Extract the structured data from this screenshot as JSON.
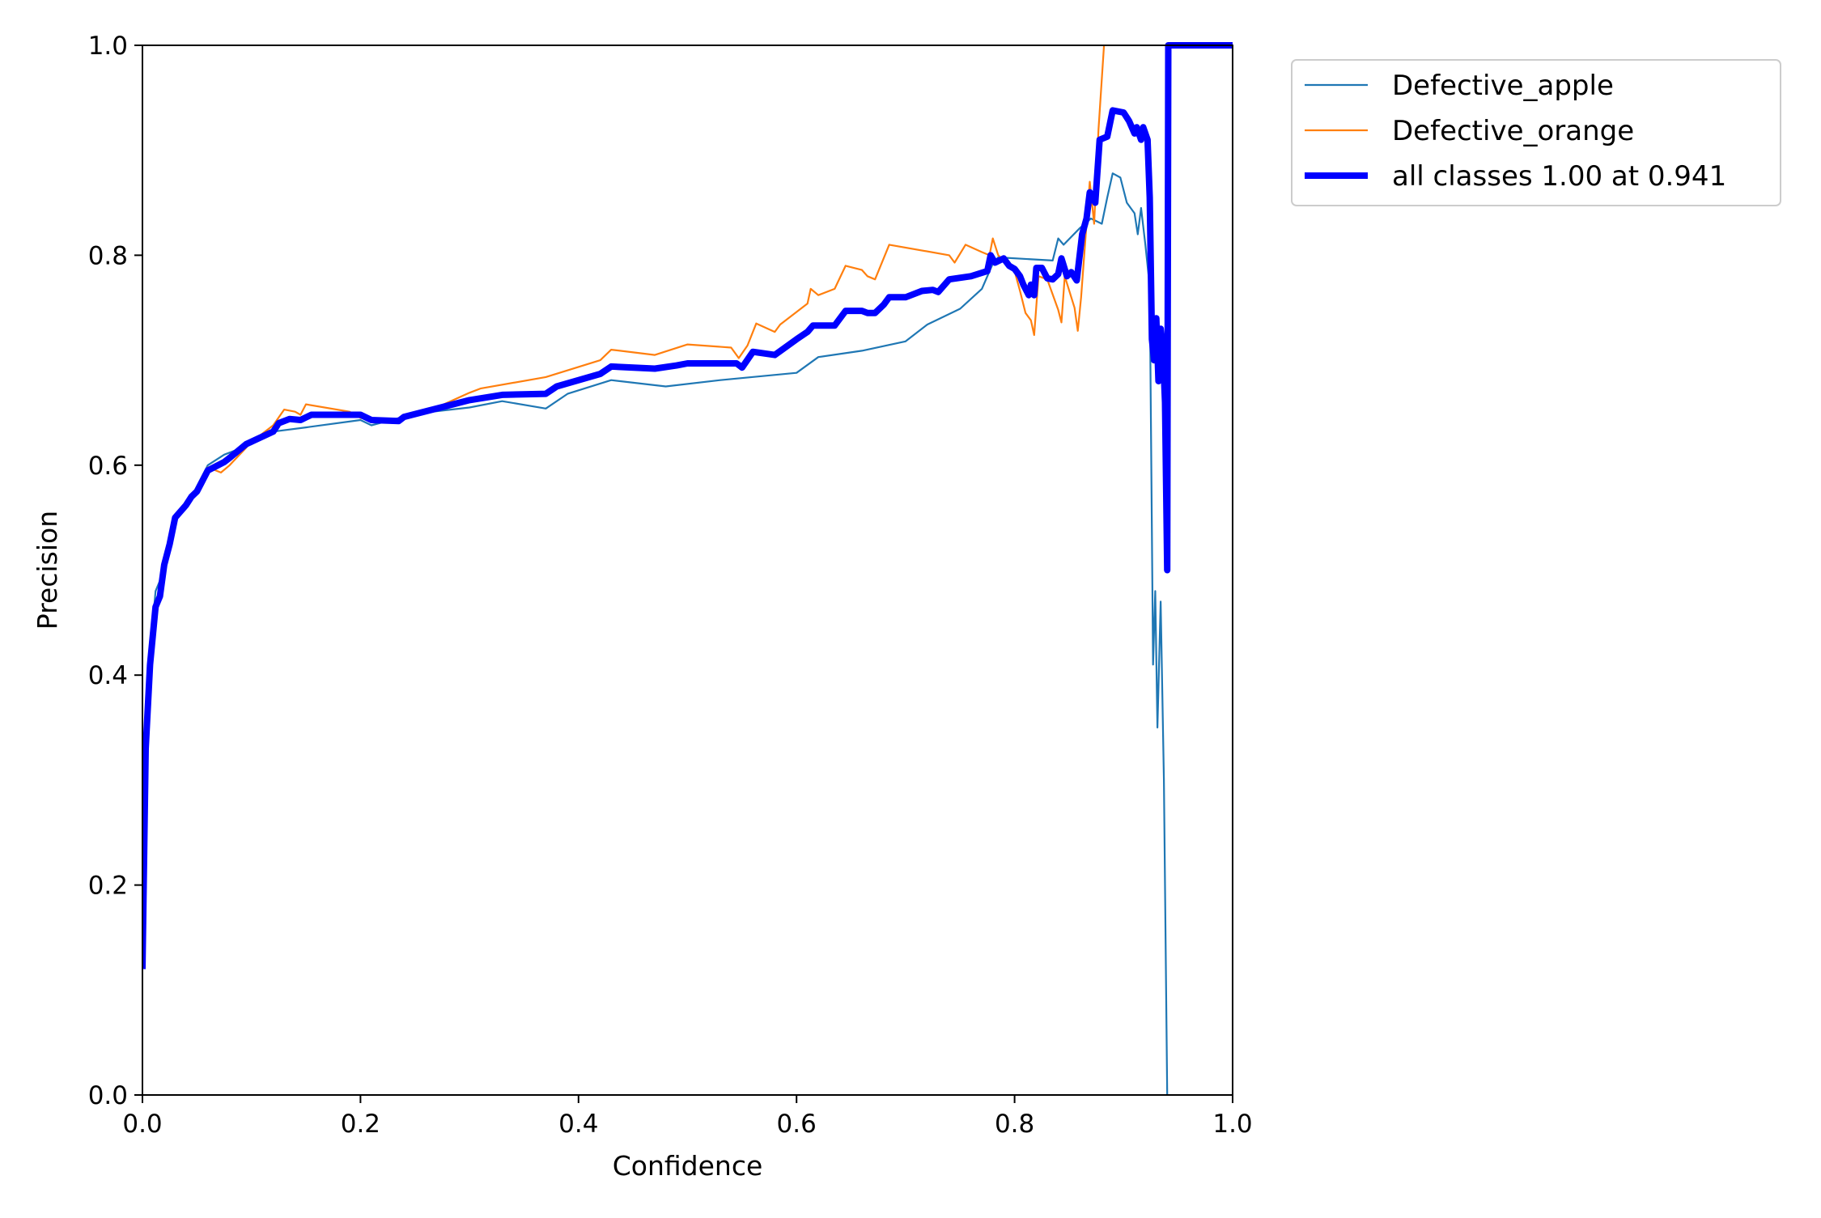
{
  "chart_data": {
    "type": "line",
    "title": "",
    "xlabel": "Confidence",
    "ylabel": "Precision",
    "xlim": [
      0.0,
      1.0
    ],
    "ylim": [
      0.0,
      1.0
    ],
    "xticks": [
      "0.0",
      "0.2",
      "0.4",
      "0.6",
      "0.8",
      "1.0"
    ],
    "yticks": [
      "0.0",
      "0.2",
      "0.4",
      "0.6",
      "0.8",
      "1.0"
    ],
    "grid": false,
    "legend": {
      "placement": "outside-top-right"
    },
    "series": [
      {
        "name": "Defective_apple",
        "color": "#1f77b4",
        "width": "thin",
        "points": [
          [
            0.0,
            0.14
          ],
          [
            0.003,
            0.33
          ],
          [
            0.007,
            0.42
          ],
          [
            0.012,
            0.48
          ],
          [
            0.016,
            0.49
          ],
          [
            0.02,
            0.51
          ],
          [
            0.03,
            0.55
          ],
          [
            0.045,
            0.57
          ],
          [
            0.06,
            0.6
          ],
          [
            0.075,
            0.61
          ],
          [
            0.1,
            0.62
          ],
          [
            0.12,
            0.632
          ],
          [
            0.15,
            0.636
          ],
          [
            0.2,
            0.643
          ],
          [
            0.21,
            0.638
          ],
          [
            0.25,
            0.649
          ],
          [
            0.3,
            0.655
          ],
          [
            0.33,
            0.661
          ],
          [
            0.37,
            0.654
          ],
          [
            0.39,
            0.668
          ],
          [
            0.43,
            0.681
          ],
          [
            0.48,
            0.675
          ],
          [
            0.53,
            0.681
          ],
          [
            0.6,
            0.688
          ],
          [
            0.62,
            0.703
          ],
          [
            0.66,
            0.709
          ],
          [
            0.7,
            0.718
          ],
          [
            0.72,
            0.734
          ],
          [
            0.75,
            0.749
          ],
          [
            0.77,
            0.768
          ],
          [
            0.78,
            0.792
          ],
          [
            0.785,
            0.798
          ],
          [
            0.835,
            0.795
          ],
          [
            0.84,
            0.816
          ],
          [
            0.845,
            0.81
          ],
          [
            0.86,
            0.826
          ],
          [
            0.87,
            0.835
          ],
          [
            0.88,
            0.83
          ],
          [
            0.885,
            0.855
          ],
          [
            0.89,
            0.878
          ],
          [
            0.897,
            0.874
          ],
          [
            0.903,
            0.85
          ],
          [
            0.91,
            0.84
          ],
          [
            0.913,
            0.82
          ],
          [
            0.916,
            0.845
          ],
          [
            0.92,
            0.81
          ],
          [
            0.924,
            0.77
          ],
          [
            0.927,
            0.41
          ],
          [
            0.929,
            0.48
          ],
          [
            0.931,
            0.35
          ],
          [
            0.934,
            0.47
          ],
          [
            0.937,
            0.3
          ],
          [
            0.94,
            0.0
          ]
        ]
      },
      {
        "name": "Defective_orange",
        "color": "#ff7f0e",
        "width": "thin",
        "points": [
          [
            0.0,
            0.13
          ],
          [
            0.005,
            0.35
          ],
          [
            0.01,
            0.44
          ],
          [
            0.015,
            0.47
          ],
          [
            0.02,
            0.5
          ],
          [
            0.03,
            0.55
          ],
          [
            0.045,
            0.57
          ],
          [
            0.06,
            0.598
          ],
          [
            0.072,
            0.593
          ],
          [
            0.08,
            0.6
          ],
          [
            0.1,
            0.622
          ],
          [
            0.12,
            0.638
          ],
          [
            0.13,
            0.653
          ],
          [
            0.14,
            0.651
          ],
          [
            0.145,
            0.648
          ],
          [
            0.15,
            0.658
          ],
          [
            0.19,
            0.651
          ],
          [
            0.2,
            0.645
          ],
          [
            0.23,
            0.64
          ],
          [
            0.27,
            0.655
          ],
          [
            0.3,
            0.669
          ],
          [
            0.31,
            0.673
          ],
          [
            0.37,
            0.684
          ],
          [
            0.42,
            0.7
          ],
          [
            0.43,
            0.71
          ],
          [
            0.47,
            0.705
          ],
          [
            0.5,
            0.715
          ],
          [
            0.54,
            0.712
          ],
          [
            0.547,
            0.702
          ],
          [
            0.555,
            0.714
          ],
          [
            0.563,
            0.735
          ],
          [
            0.58,
            0.727
          ],
          [
            0.585,
            0.734
          ],
          [
            0.61,
            0.754
          ],
          [
            0.613,
            0.768
          ],
          [
            0.62,
            0.762
          ],
          [
            0.635,
            0.768
          ],
          [
            0.645,
            0.79
          ],
          [
            0.66,
            0.786
          ],
          [
            0.665,
            0.78
          ],
          [
            0.672,
            0.777
          ],
          [
            0.685,
            0.81
          ],
          [
            0.74,
            0.8
          ],
          [
            0.745,
            0.793
          ],
          [
            0.755,
            0.81
          ],
          [
            0.77,
            0.803
          ],
          [
            0.777,
            0.8
          ],
          [
            0.78,
            0.816
          ],
          [
            0.785,
            0.8
          ],
          [
            0.8,
            0.785
          ],
          [
            0.805,
            0.766
          ],
          [
            0.81,
            0.745
          ],
          [
            0.815,
            0.738
          ],
          [
            0.818,
            0.724
          ],
          [
            0.822,
            0.78
          ],
          [
            0.83,
            0.777
          ],
          [
            0.84,
            0.748
          ],
          [
            0.843,
            0.736
          ],
          [
            0.846,
            0.78
          ],
          [
            0.855,
            0.75
          ],
          [
            0.858,
            0.728
          ],
          [
            0.861,
            0.76
          ],
          [
            0.866,
            0.83
          ],
          [
            0.869,
            0.87
          ],
          [
            0.873,
            0.83
          ],
          [
            0.877,
            0.92
          ],
          [
            0.882,
            1.0
          ]
        ]
      },
      {
        "name": "all classes 1.00 at 0.941",
        "color": "#0000ff",
        "width": "thick",
        "points": [
          [
            0.0,
            0.12
          ],
          [
            0.003,
            0.33
          ],
          [
            0.007,
            0.41
          ],
          [
            0.012,
            0.465
          ],
          [
            0.016,
            0.475
          ],
          [
            0.02,
            0.505
          ],
          [
            0.025,
            0.525
          ],
          [
            0.03,
            0.55
          ],
          [
            0.04,
            0.562
          ],
          [
            0.045,
            0.57
          ],
          [
            0.05,
            0.575
          ],
          [
            0.06,
            0.595
          ],
          [
            0.075,
            0.603
          ],
          [
            0.08,
            0.607
          ],
          [
            0.095,
            0.62
          ],
          [
            0.12,
            0.632
          ],
          [
            0.125,
            0.64
          ],
          [
            0.135,
            0.644
          ],
          [
            0.145,
            0.643
          ],
          [
            0.155,
            0.648
          ],
          [
            0.2,
            0.648
          ],
          [
            0.21,
            0.643
          ],
          [
            0.235,
            0.642
          ],
          [
            0.24,
            0.646
          ],
          [
            0.27,
            0.654
          ],
          [
            0.3,
            0.662
          ],
          [
            0.33,
            0.667
          ],
          [
            0.37,
            0.668
          ],
          [
            0.38,
            0.675
          ],
          [
            0.42,
            0.687
          ],
          [
            0.43,
            0.694
          ],
          [
            0.47,
            0.692
          ],
          [
            0.49,
            0.695
          ],
          [
            0.5,
            0.697
          ],
          [
            0.545,
            0.697
          ],
          [
            0.55,
            0.693
          ],
          [
            0.56,
            0.708
          ],
          [
            0.58,
            0.705
          ],
          [
            0.6,
            0.72
          ],
          [
            0.61,
            0.727
          ],
          [
            0.615,
            0.733
          ],
          [
            0.635,
            0.733
          ],
          [
            0.645,
            0.747
          ],
          [
            0.66,
            0.747
          ],
          [
            0.665,
            0.745
          ],
          [
            0.672,
            0.745
          ],
          [
            0.68,
            0.753
          ],
          [
            0.685,
            0.76
          ],
          [
            0.7,
            0.76
          ],
          [
            0.715,
            0.766
          ],
          [
            0.725,
            0.767
          ],
          [
            0.73,
            0.765
          ],
          [
            0.74,
            0.777
          ],
          [
            0.76,
            0.78
          ],
          [
            0.775,
            0.785
          ],
          [
            0.778,
            0.8
          ],
          [
            0.782,
            0.793
          ],
          [
            0.79,
            0.797
          ],
          [
            0.795,
            0.79
          ],
          [
            0.8,
            0.787
          ],
          [
            0.805,
            0.78
          ],
          [
            0.808,
            0.772
          ],
          [
            0.813,
            0.762
          ],
          [
            0.815,
            0.772
          ],
          [
            0.818,
            0.762
          ],
          [
            0.82,
            0.788
          ],
          [
            0.825,
            0.788
          ],
          [
            0.83,
            0.778
          ],
          [
            0.835,
            0.777
          ],
          [
            0.84,
            0.782
          ],
          [
            0.843,
            0.797
          ],
          [
            0.848,
            0.78
          ],
          [
            0.852,
            0.784
          ],
          [
            0.857,
            0.776
          ],
          [
            0.862,
            0.82
          ],
          [
            0.866,
            0.835
          ],
          [
            0.869,
            0.86
          ],
          [
            0.874,
            0.85
          ],
          [
            0.878,
            0.91
          ],
          [
            0.885,
            0.913
          ],
          [
            0.89,
            0.938
          ],
          [
            0.9,
            0.936
          ],
          [
            0.905,
            0.928
          ],
          [
            0.91,
            0.916
          ],
          [
            0.912,
            0.922
          ],
          [
            0.916,
            0.91
          ],
          [
            0.918,
            0.922
          ],
          [
            0.922,
            0.91
          ],
          [
            0.924,
            0.855
          ],
          [
            0.926,
            0.72
          ],
          [
            0.928,
            0.7
          ],
          [
            0.93,
            0.74
          ],
          [
            0.932,
            0.68
          ],
          [
            0.934,
            0.73
          ],
          [
            0.936,
            0.71
          ],
          [
            0.938,
            0.66
          ],
          [
            0.94,
            0.5
          ],
          [
            0.941,
            1.0
          ],
          [
            1.0,
            1.0
          ]
        ]
      }
    ]
  }
}
